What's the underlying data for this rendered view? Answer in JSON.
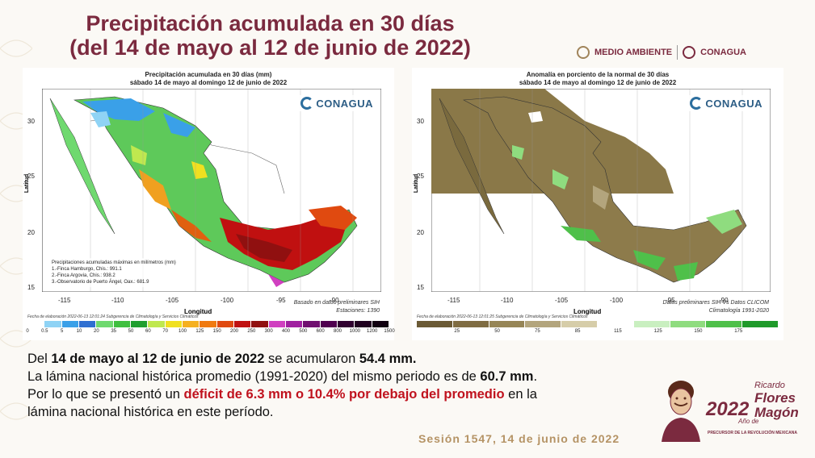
{
  "header": {
    "title_line1": "Precipitación acumulada en 30 días",
    "title_line2": "(del 14 de mayo al 12 de junio de 2022)",
    "logo_medio_ambiente": "MEDIO AMBIENTE",
    "logo_conagua": "CONAGUA"
  },
  "map_left": {
    "title": "Precipitación acumulada en 30 días (mm)",
    "subtitle": "sábado 14 de mayo al domingo 12 de junio de 2022",
    "watermark": "CONAGUA",
    "ylabel": "Latitud",
    "xlabel": "Longitud",
    "yticks": [
      "30",
      "25",
      "20",
      "15"
    ],
    "xticks": [
      "-115",
      "-110",
      "-105",
      "-100",
      "-95",
      "-90"
    ],
    "legend_title": "Precipitaciones acumuladas máximas en milímetros (mm)",
    "legend_items": [
      "1.-Finca Hamburgo, Chis.: 991.1",
      "2.-Finca Argovia, Chis.: 938.2",
      "3.-Observatorio de Puerto Ángel, Oax.: 681.9"
    ],
    "note1": "Basado en datos preliminares SIH",
    "note2": "Estaciones: 1390",
    "credit": "Fecha de elaboración 2022-06-13 12:01:24 Subgerencia de Climatología y Servicios Climáticos",
    "colorbar_labels": [
      "0",
      "0.5",
      "5",
      "10",
      "20",
      "35",
      "50",
      "60",
      "70",
      "100",
      "125",
      "150",
      "200",
      "250",
      "300",
      "400",
      "500",
      "600",
      "800",
      "1000",
      "1200",
      "1500"
    ],
    "colorbar_colors": [
      "#ffffff",
      "#8fd3f5",
      "#3aa0e8",
      "#2f6fd1",
      "#6fd96f",
      "#3fbf3f",
      "#1f9f2f",
      "#bfe84f",
      "#f0e020",
      "#f5b020",
      "#f07a10",
      "#e04a10",
      "#c01010",
      "#901010",
      "#d040c0",
      "#a020a0",
      "#701070",
      "#500050",
      "#300030",
      "#200020",
      "#100010"
    ]
  },
  "map_right": {
    "title": "Anomalía en porciento de la normal de 30 días",
    "subtitle": "sábado 14 de mayo al domingo 12 de junio de 2022",
    "watermark": "CONAGUA",
    "ylabel": "Latitud",
    "xlabel": "Longitud",
    "yticks": [
      "30",
      "25",
      "20",
      "15"
    ],
    "xticks": [
      "-115",
      "-110",
      "-105",
      "-100",
      "-95",
      "-90"
    ],
    "note1": "Datos preliminares SIH Vs Datos CLICOM",
    "note2": "Climatología 1991-2020",
    "credit": "Fecha de elaboración 2022-06-13 12:01:25 Subgerencia de Climatología y Servicios Climáticos",
    "colorbar_labels": [
      "25",
      "50",
      "75",
      "85",
      "115",
      "125",
      "150",
      "175"
    ],
    "colorbar_colors": [
      "#6b5a35",
      "#7f6c42",
      "#968556",
      "#b3a57d",
      "#d6cda9",
      "#ffffff",
      "#c9efc0",
      "#8fdc7f",
      "#4fc04a",
      "#1f9a2a"
    ]
  },
  "body_text": {
    "l1_a": "Del ",
    "l1_b": "14 de mayo al 12 de junio de 2022",
    "l1_c": " se acumularon ",
    "l1_d": "54.4 mm.",
    "l2_a": "La lámina nacional histórica promedio (1991-2020) del mismo periodo es de ",
    "l2_b": "60.7 mm",
    "l2_c": ".",
    "l3_a": "Por lo que se presentó un ",
    "l3_b": "déficit de 6.3 mm o 10.4% por debajo del promedio",
    "l3_c": " en la",
    "l4": "lámina nacional histórica en este período."
  },
  "footer": {
    "session": "Sesión 1547, 14 de junio de 2022"
  },
  "branding": {
    "year": "2022",
    "name1": "Ricardo",
    "name2": "Flores",
    "name3": "Magón",
    "ano": "Año de",
    "sub": "PRECURSOR DE LA REVOLUCIÓN MEXICANA"
  }
}
